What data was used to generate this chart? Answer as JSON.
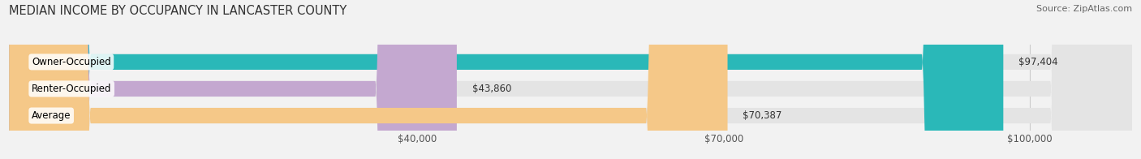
{
  "title": "MEDIAN INCOME BY OCCUPANCY IN LANCASTER COUNTY",
  "source": "Source: ZipAtlas.com",
  "categories": [
    "Owner-Occupied",
    "Renter-Occupied",
    "Average"
  ],
  "values": [
    97404,
    43860,
    70387
  ],
  "bar_colors": [
    "#2ab8b8",
    "#c4a8d0",
    "#f5c888"
  ],
  "bar_labels": [
    "$97,404",
    "$43,860",
    "$70,387"
  ],
  "xlim_min": 0,
  "xlim_max": 110000,
  "xticks": [
    40000,
    70000,
    100000
  ],
  "xticklabels": [
    "$40,000",
    "$70,000",
    "$100,000"
  ],
  "background_color": "#f2f2f2",
  "bar_bg_color": "#e4e4e4",
  "title_fontsize": 10.5,
  "source_fontsize": 8,
  "label_fontsize": 8.5
}
